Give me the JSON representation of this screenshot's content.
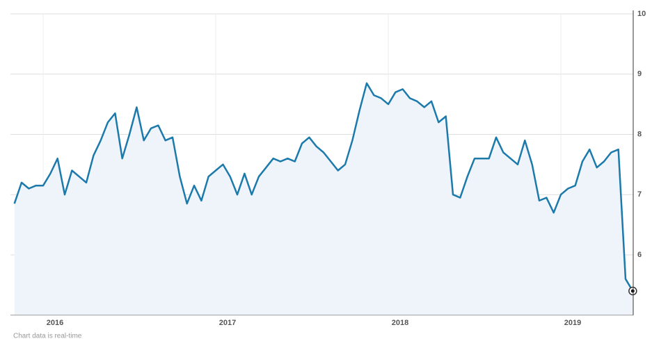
{
  "chart_data": {
    "type": "line",
    "categories": [
      null,
      null,
      null,
      null,
      "2016",
      null,
      null,
      null,
      null,
      null,
      null,
      null,
      null,
      null,
      null,
      null,
      null,
      null,
      null,
      null,
      null,
      null,
      null,
      null,
      null,
      null,
      null,
      null,
      "2017",
      null,
      null,
      null,
      null,
      null,
      null,
      null,
      null,
      null,
      null,
      null,
      null,
      null,
      null,
      null,
      null,
      null,
      null,
      null,
      null,
      null,
      null,
      null,
      "2018",
      null,
      null,
      null,
      null,
      null,
      null,
      null,
      null,
      null,
      null,
      null,
      null,
      null,
      null,
      null,
      null,
      null,
      null,
      null,
      null,
      null,
      null,
      null,
      "2019",
      null,
      null,
      null,
      null,
      null,
      null,
      null,
      null,
      null,
      null
    ],
    "values": [
      6.85,
      7.2,
      7.1,
      7.15,
      7.15,
      7.35,
      7.6,
      7.0,
      7.4,
      7.3,
      7.2,
      7.65,
      7.9,
      8.2,
      8.35,
      7.6,
      8.0,
      8.45,
      7.9,
      8.1,
      8.15,
      7.9,
      7.95,
      7.3,
      6.85,
      7.15,
      6.9,
      7.3,
      7.4,
      7.5,
      7.3,
      7.0,
      7.35,
      7.0,
      7.3,
      7.45,
      7.6,
      7.55,
      7.6,
      7.55,
      7.85,
      7.95,
      7.8,
      7.7,
      7.55,
      7.4,
      7.5,
      7.9,
      8.4,
      8.85,
      8.65,
      8.6,
      8.5,
      8.7,
      8.75,
      8.6,
      8.55,
      8.45,
      8.55,
      8.2,
      8.3,
      7.0,
      6.95,
      7.3,
      7.6,
      7.6,
      7.6,
      7.95,
      7.7,
      7.6,
      7.5,
      7.9,
      7.5,
      6.9,
      6.95,
      6.7,
      7.0,
      7.1,
      7.15,
      7.55,
      7.75,
      7.45,
      7.55,
      7.7,
      7.75,
      5.6,
      5.4
    ],
    "color": "#1b7aab",
    "ylim": [
      5,
      10
    ],
    "yticks": [
      6,
      7,
      8,
      9,
      10
    ],
    "grid": true,
    "footnote": "Chart data is real-time"
  }
}
